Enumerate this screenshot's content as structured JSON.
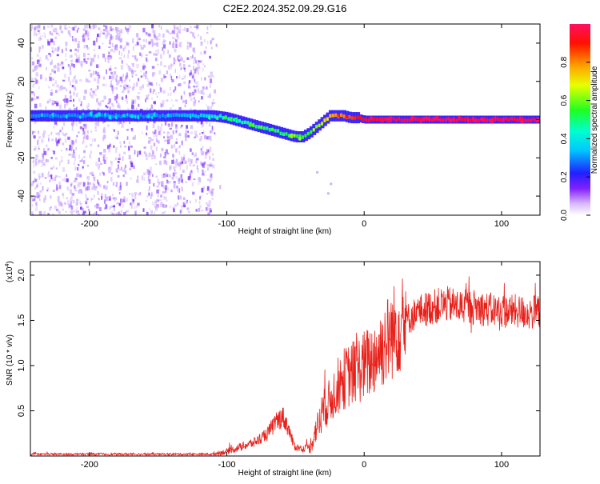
{
  "title": "C2E2.2024.352.09.29.G16",
  "colorbar": {
    "label": "Normalized spectral amplitude",
    "ticks": [
      "0.0",
      "0.2",
      "0.4",
      "0.6",
      "0.8"
    ]
  },
  "chart_data": [
    {
      "type": "heatmap",
      "xlabel": "Height of straight line (km)",
      "ylabel": "Frequency (Hz)",
      "xlim": [
        -243,
        128
      ],
      "ylim": [
        -50,
        50
      ],
      "x_ticks": [
        -200,
        -100,
        0,
        100
      ],
      "x_tick_labels": [
        "-200",
        "-100",
        "0",
        "100"
      ],
      "y_ticks": [
        40,
        20,
        0,
        -20,
        -40
      ],
      "y_tick_labels": [
        "40",
        "20",
        "0",
        "-20",
        "-40"
      ],
      "noise_region_x": [
        -243,
        -110
      ],
      "ridge": {
        "x": [
          -243,
          -200,
          -150,
          -120,
          -110,
          -100,
          -90,
          -80,
          -70,
          -60,
          -50,
          -45,
          -40,
          -35,
          -30,
          -25,
          -20,
          -15,
          -10,
          -5,
          0,
          10,
          20,
          40,
          60,
          80,
          100,
          128
        ],
        "freq": [
          2,
          2,
          2,
          2,
          2,
          1,
          -1,
          -3,
          -5,
          -7,
          -9,
          -9,
          -7,
          -4,
          -1,
          2,
          2,
          2,
          1,
          1,
          0,
          0,
          0,
          0,
          0,
          0,
          0,
          0
        ],
        "amplitude": [
          0.3,
          0.3,
          0.3,
          0.35,
          0.4,
          0.45,
          0.45,
          0.5,
          0.5,
          0.5,
          0.55,
          0.55,
          0.55,
          0.6,
          0.65,
          0.75,
          0.8,
          0.8,
          0.85,
          0.9,
          0.95,
          0.95,
          0.97,
          0.97,
          0.97,
          0.97,
          0.97,
          0.97
        ]
      }
    },
    {
      "type": "line",
      "xlabel": "Height of straight line (km)",
      "ylabel": "SNR (10 * v/v)",
      "exponent_label": "(x10",
      "exponent_sup": "4",
      "exponent_close": ")",
      "xlim": [
        -243,
        128
      ],
      "ylim": [
        0,
        2.15
      ],
      "x_ticks": [
        -200,
        -100,
        0,
        100
      ],
      "x_tick_labels": [
        "-200",
        "-100",
        "0",
        "100"
      ],
      "y_ticks": [
        0.5,
        1.0,
        1.5,
        2.0
      ],
      "y_tick_labels": [
        "0.5",
        "1.0",
        "1.5",
        "2.0"
      ],
      "series": [
        {
          "color": "#e8201a",
          "x": [
            -243,
            -200,
            -150,
            -110,
            -100,
            -90,
            -80,
            -75,
            -70,
            -68,
            -65,
            -62,
            -60,
            -58,
            -55,
            -52,
            -50,
            -45,
            -40,
            -38,
            -35,
            -32,
            -30,
            -28,
            -25,
            -22,
            -20,
            -18,
            -15,
            -10,
            -5,
            0,
            5,
            10,
            15,
            20,
            25,
            30,
            40,
            50,
            60,
            70,
            80,
            90,
            100,
            110,
            120,
            128
          ],
          "y": [
            0.02,
            0.02,
            0.02,
            0.02,
            0.05,
            0.1,
            0.15,
            0.2,
            0.25,
            0.3,
            0.35,
            0.4,
            0.45,
            0.4,
            0.3,
            0.15,
            0.1,
            0.08,
            0.1,
            0.15,
            0.3,
            0.4,
            0.5,
            0.55,
            0.6,
            0.7,
            0.75,
            0.8,
            0.85,
            0.9,
            0.95,
            1.0,
            1.05,
            1.15,
            1.25,
            1.35,
            1.45,
            1.5,
            1.6,
            1.65,
            1.68,
            1.65,
            1.65,
            1.62,
            1.6,
            1.6,
            1.58,
            1.6
          ]
        }
      ]
    }
  ]
}
